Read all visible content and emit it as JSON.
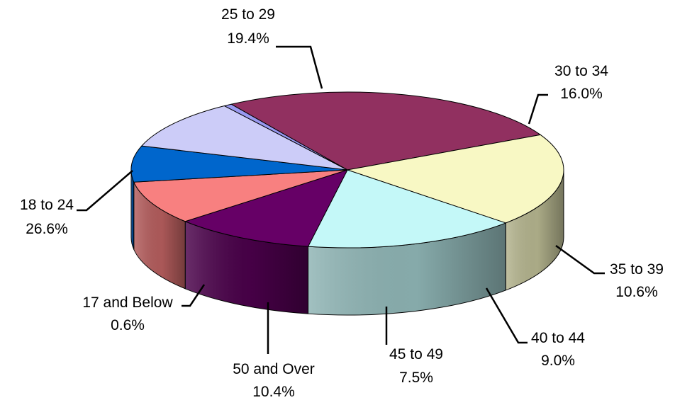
{
  "chart_data": {
    "type": "pie",
    "title": "",
    "style": "3d-tilted",
    "slices": [
      {
        "label": "18 to 24",
        "value_text": "26.6%",
        "value": 26.6,
        "color": "#913060"
      },
      {
        "label": "25 to 29",
        "value_text": "19.4%",
        "value": 19.4,
        "color": "#F8F8C4"
      },
      {
        "label": "30 to 34",
        "value_text": "16.0%",
        "value": 16.0,
        "color": "#C4F8F8"
      },
      {
        "label": "35 to 39",
        "value_text": "10.6%",
        "value": 10.6,
        "color": "#660066"
      },
      {
        "label": "40 to 44",
        "value_text": "9.0%",
        "value": 9.0,
        "color": "#F88080"
      },
      {
        "label": "45 to 49",
        "value_text": "7.5%",
        "value": 7.5,
        "color": "#0066CC"
      },
      {
        "label": "50 and Over",
        "value_text": "10.4%",
        "value": 10.4,
        "color": "#CCCCF8"
      },
      {
        "label": "17 and Below",
        "value_text": "0.6%",
        "value": 0.6,
        "color": "#9999F0"
      }
    ]
  }
}
